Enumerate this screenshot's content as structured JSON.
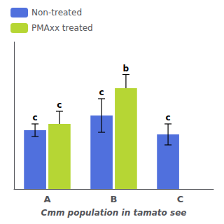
{
  "chart_data": {
    "type": "bar",
    "categories": [
      "A",
      "B",
      "C"
    ],
    "series": [
      {
        "name": "Non-treated",
        "values": [
          2.8,
          3.5,
          2.6
        ],
        "errors": [
          0.3,
          0.8,
          0.5
        ],
        "labels": [
          "c",
          "c",
          "c"
        ]
      },
      {
        "name": "PMAxx treated",
        "values": [
          3.1,
          4.8,
          null
        ],
        "errors_upper": [
          0.6,
          0.65,
          null
        ],
        "labels": [
          "c",
          "b",
          null
        ]
      }
    ],
    "xlabel": "Cmm population in tamato see",
    "ylim": [
      0,
      7.0
    ],
    "tick_labels": "x",
    "grid": false,
    "legend": "upper left"
  }
}
